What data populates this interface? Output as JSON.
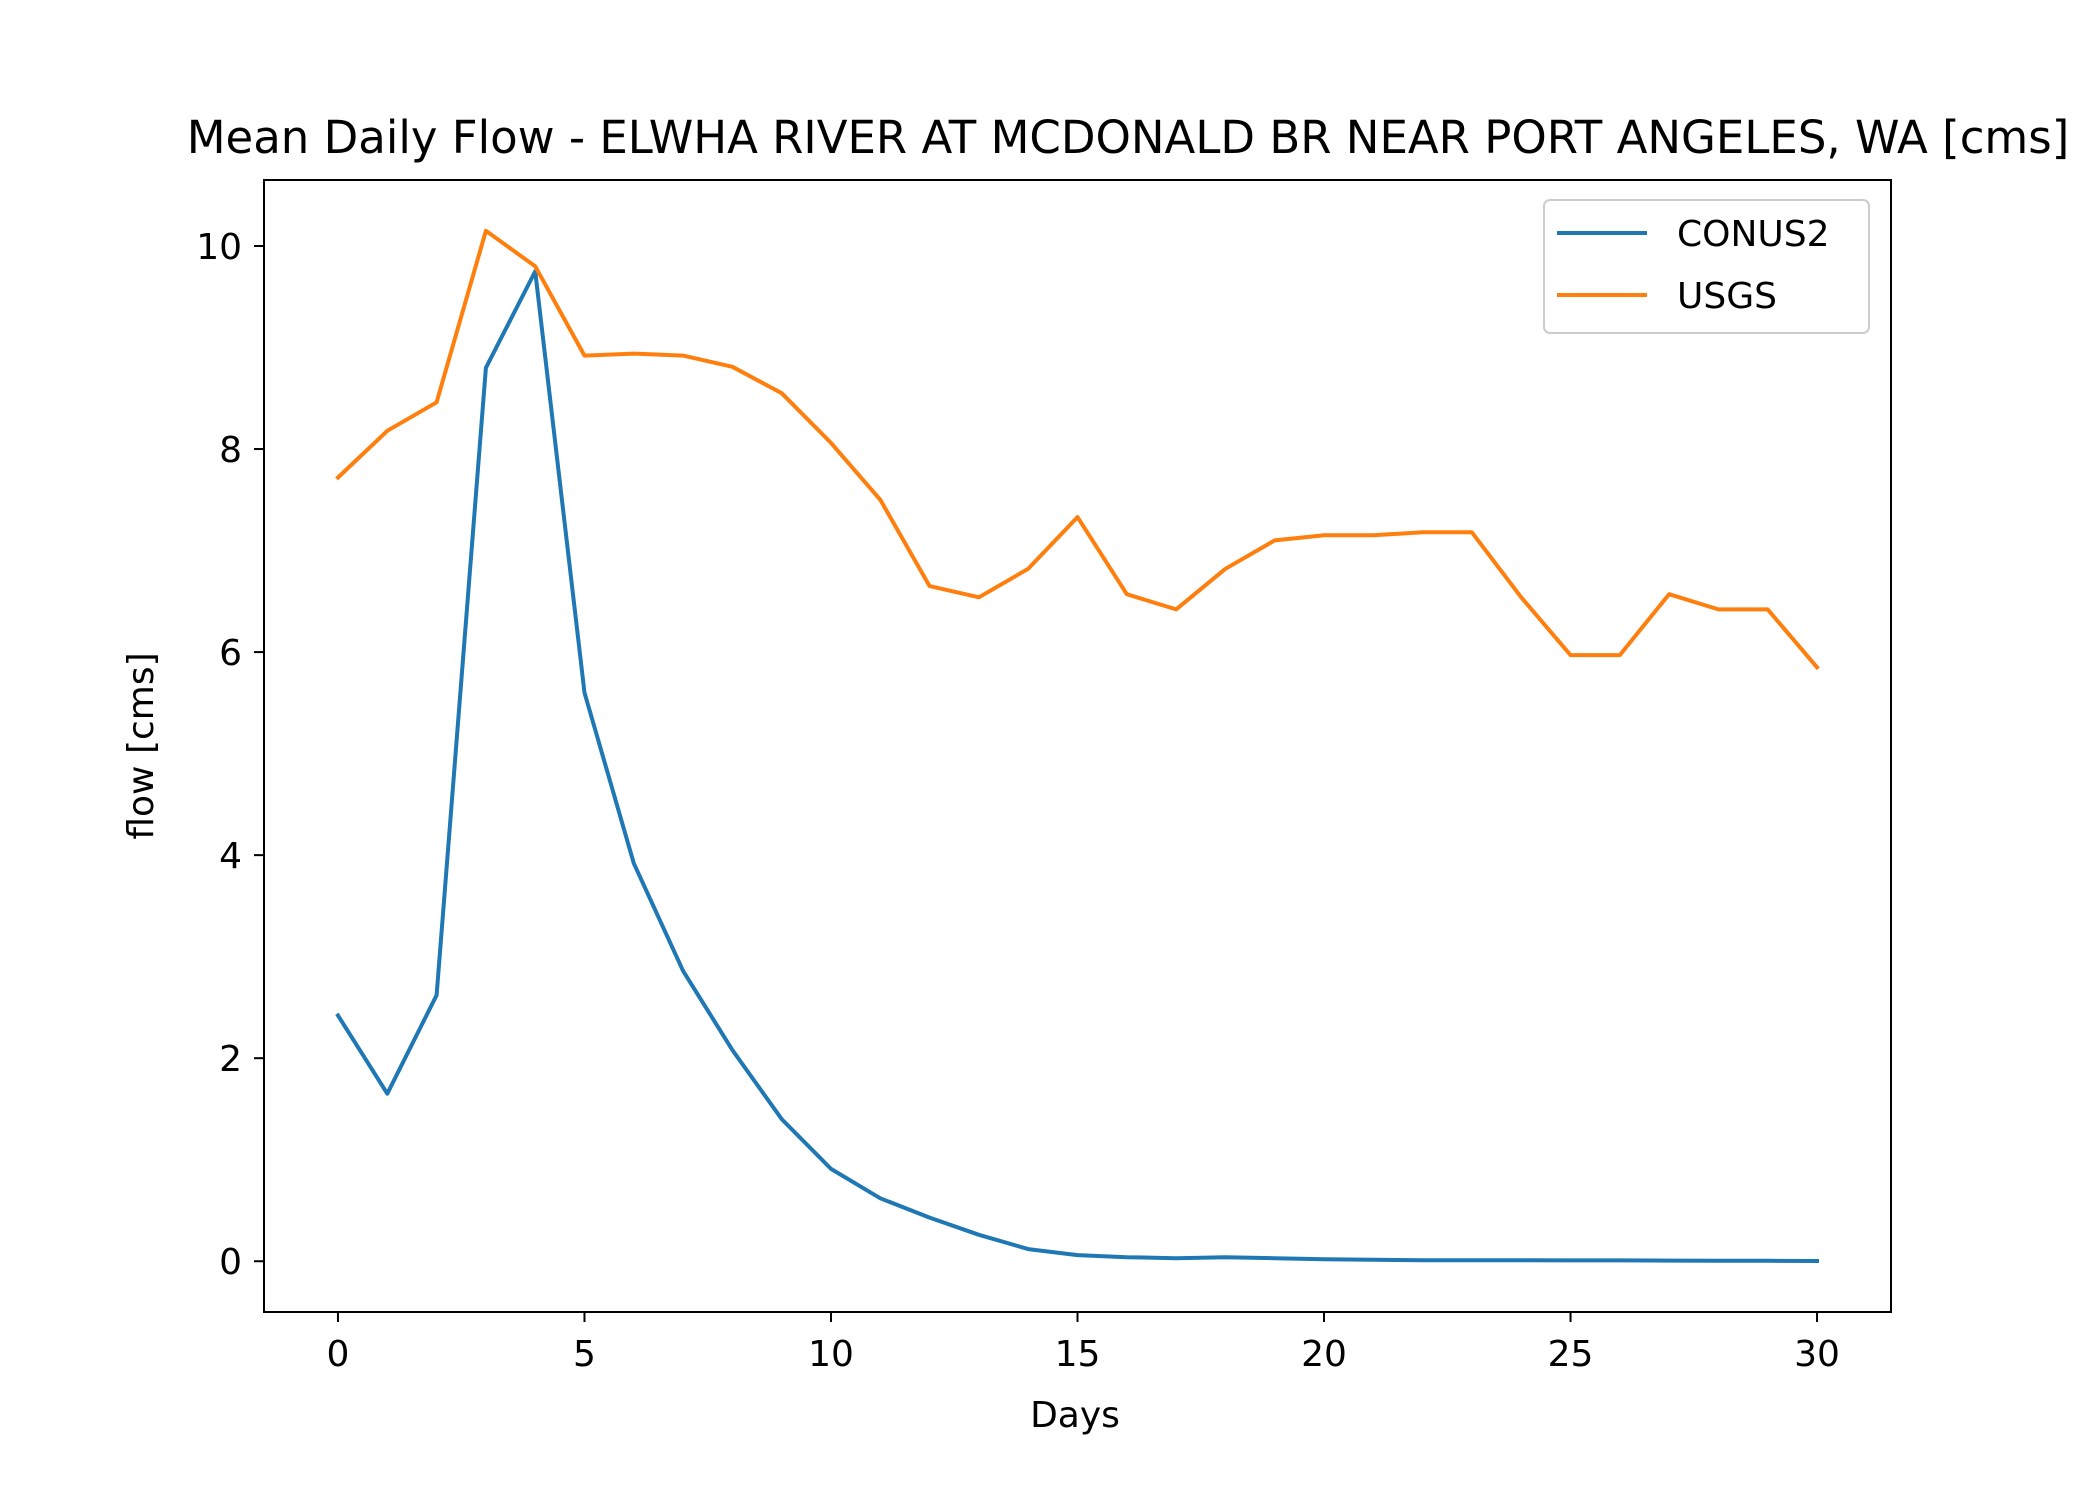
{
  "chart_data": {
    "type": "line",
    "title": "Mean Daily Flow - ELWHA RIVER AT MCDONALD BR NEAR PORT ANGELES, WA [cms]",
    "xlabel": "Days",
    "ylabel": "flow [cms]",
    "xlim": [
      -1.5,
      31.5
    ],
    "ylim": [
      -0.5,
      10.65
    ],
    "xticks": [
      0,
      5,
      10,
      15,
      20,
      25,
      30
    ],
    "yticks": [
      0,
      2,
      4,
      6,
      8,
      10
    ],
    "grid": false,
    "legend": "top-right",
    "x": [
      0,
      1,
      2,
      3,
      4,
      5,
      6,
      7,
      8,
      9,
      10,
      11,
      12,
      13,
      14,
      15,
      16,
      17,
      18,
      19,
      20,
      21,
      22,
      23,
      24,
      25,
      26,
      27,
      28,
      29,
      30
    ],
    "series": [
      {
        "name": "CONUS2",
        "color": "#1f77b4",
        "values": [
          2.42,
          1.65,
          2.62,
          8.8,
          9.75,
          5.6,
          3.92,
          2.86,
          2.08,
          1.4,
          0.91,
          0.62,
          0.43,
          0.26,
          0.12,
          0.06,
          0.04,
          0.03,
          0.04,
          0.03,
          0.02,
          0.015,
          0.01,
          0.01,
          0.01,
          0.008,
          0.008,
          0.006,
          0.004,
          0.004,
          0.002
        ]
      },
      {
        "name": "USGS",
        "color": "#ff7f0e",
        "values": [
          7.72,
          8.18,
          8.46,
          10.15,
          9.8,
          8.92,
          8.94,
          8.92,
          8.81,
          8.55,
          8.06,
          7.5,
          6.65,
          6.54,
          6.82,
          7.33,
          6.57,
          6.42,
          6.82,
          7.1,
          7.15,
          7.15,
          7.18,
          7.18,
          6.54,
          5.97,
          5.97,
          6.57,
          6.42,
          6.42,
          5.85
        ]
      }
    ]
  }
}
